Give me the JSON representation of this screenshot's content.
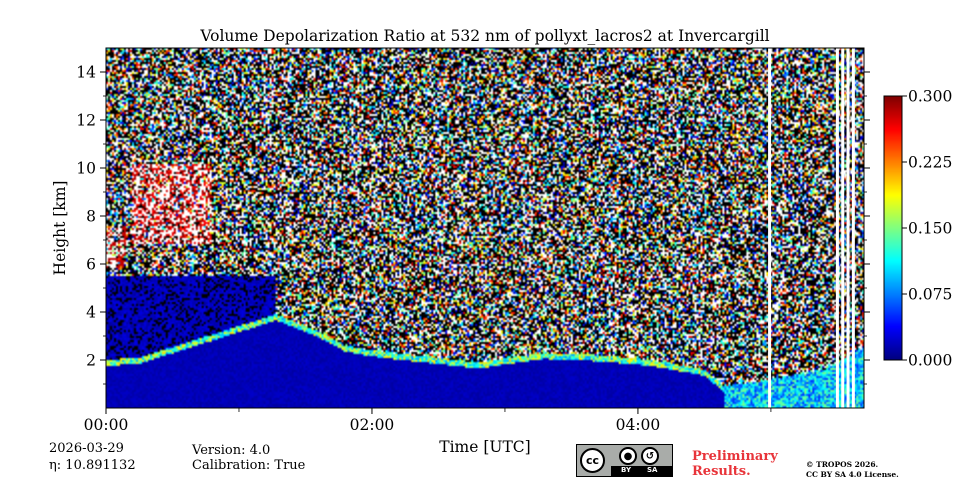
{
  "chart_data": {
    "type": "heatmap",
    "title": "Volume Depolarization Ratio at 532 nm of pollyxt_lacros2 at Invercargill",
    "xlabel": "Time [UTC]",
    "ylabel": "Height [km]",
    "xlim_hours": [
      0,
      5.7
    ],
    "ylim_km": [
      0,
      15
    ],
    "x_ticks": [
      {
        "value": 0,
        "label": "00:00"
      },
      {
        "value": 2,
        "label": "02:00"
      },
      {
        "value": 4,
        "label": "04:00"
      }
    ],
    "x_minor_ticks": [
      1,
      3,
      5
    ],
    "y_ticks": [
      {
        "value": 2,
        "label": "2"
      },
      {
        "value": 4,
        "label": "4"
      },
      {
        "value": 6,
        "label": "6"
      },
      {
        "value": 8,
        "label": "8"
      },
      {
        "value": 10,
        "label": "10"
      },
      {
        "value": 12,
        "label": "12"
      },
      {
        "value": 14,
        "label": "14"
      }
    ],
    "colorbar": {
      "vmin": 0.0,
      "vmax": 0.3,
      "ticks": [
        {
          "value": 0.0,
          "label": "0.000"
        },
        {
          "value": 0.075,
          "label": "0.075"
        },
        {
          "value": 0.15,
          "label": "0.150"
        },
        {
          "value": 0.225,
          "label": "0.225"
        },
        {
          "value": 0.3,
          "label": "0.300"
        }
      ],
      "colormap": "jet"
    },
    "features": {
      "boundary_layer_top_km": [
        {
          "t": 0.0,
          "h": 2.0
        },
        {
          "t": 0.25,
          "h": 2.1
        },
        {
          "t": 1.28,
          "h": 3.9
        },
        {
          "t": 1.6,
          "h": 3.2
        },
        {
          "t": 1.8,
          "h": 2.6
        },
        {
          "t": 2.0,
          "h": 2.4
        },
        {
          "t": 2.3,
          "h": 2.2
        },
        {
          "t": 2.8,
          "h": 1.9
        },
        {
          "t": 3.3,
          "h": 2.3
        },
        {
          "t": 3.7,
          "h": 2.2
        },
        {
          "t": 4.1,
          "h": 2.0
        },
        {
          "t": 4.5,
          "h": 1.6
        },
        {
          "t": 4.65,
          "h": 0.9
        },
        {
          "t": 5.0,
          "h": 1.2
        },
        {
          "t": 5.4,
          "h": 1.6
        },
        {
          "t": 5.7,
          "h": 2.5
        }
      ],
      "high_depol_aerosol_layer": {
        "t_start": 0.2,
        "t_end": 0.8,
        "h_bottom_km": 6.8,
        "h_top_km": 10.2,
        "value": 0.3
      },
      "low_aerosol_layer": {
        "t_start": 0.0,
        "t_end": 0.15,
        "h_bottom_km": 5.8,
        "h_top_km": 7.5,
        "value": 0.28
      },
      "no_data_gaps_hours": [
        4.99,
        5.5,
        5.54,
        5.58,
        5.62
      ]
    }
  },
  "footer": {
    "date": "2026-03-29",
    "eta": "η: 10.891132",
    "version": "Version: 4.0",
    "calibration": "Calibration: True",
    "license_badge": {
      "cc": "cc",
      "by": "BY",
      "sa": "SA"
    },
    "preliminary_line1": "Preliminary",
    "preliminary_line2": "Results.",
    "copyright_line1": "© TROPOS 2026.",
    "copyright_line2": "CC BY SA 4.0 License.",
    "preliminary_color": "#e8343a"
  }
}
